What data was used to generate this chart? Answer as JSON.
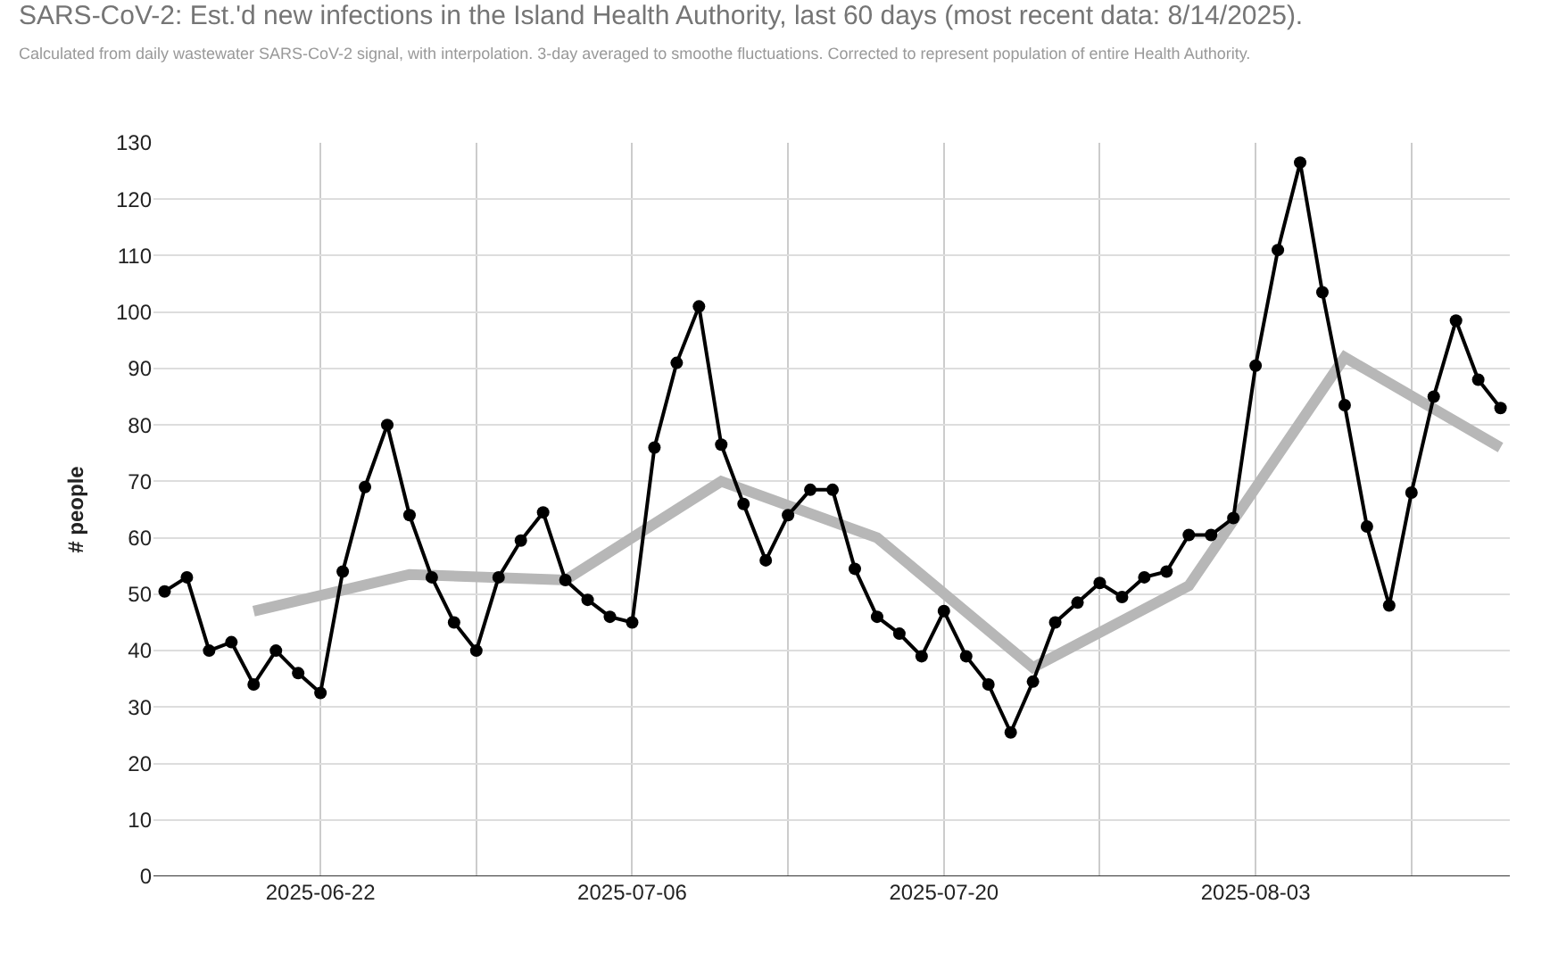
{
  "chart_data": {
    "type": "line",
    "title": "SARS-CoV-2: Est.'d new infections in the Island Health Authority, last 60 days (most recent data: 8/14/2025).",
    "subtitle": "Calculated from daily wastewater SARS-CoV-2 signal, with interpolation. 3-day averaged to smoothe fluctuations. Corrected to represent population of entire Health Authority.",
    "ylabel": "# people",
    "x": [
      "2025-06-15",
      "2025-06-16",
      "2025-06-17",
      "2025-06-18",
      "2025-06-19",
      "2025-06-20",
      "2025-06-21",
      "2025-06-22",
      "2025-06-23",
      "2025-06-24",
      "2025-06-25",
      "2025-06-26",
      "2025-06-27",
      "2025-06-28",
      "2025-06-29",
      "2025-06-30",
      "2025-07-01",
      "2025-07-02",
      "2025-07-03",
      "2025-07-04",
      "2025-07-05",
      "2025-07-06",
      "2025-07-07",
      "2025-07-08",
      "2025-07-09",
      "2025-07-10",
      "2025-07-11",
      "2025-07-12",
      "2025-07-13",
      "2025-07-14",
      "2025-07-15",
      "2025-07-16",
      "2025-07-17",
      "2025-07-18",
      "2025-07-19",
      "2025-07-20",
      "2025-07-21",
      "2025-07-22",
      "2025-07-23",
      "2025-07-24",
      "2025-07-25",
      "2025-07-26",
      "2025-07-27",
      "2025-07-28",
      "2025-07-29",
      "2025-07-30",
      "2025-07-31",
      "2025-08-01",
      "2025-08-02",
      "2025-08-03",
      "2025-08-04",
      "2025-08-05",
      "2025-08-06",
      "2025-08-07",
      "2025-08-08",
      "2025-08-09",
      "2025-08-10",
      "2025-08-11",
      "2025-08-12",
      "2025-08-13",
      "2025-08-14"
    ],
    "series": [
      {
        "color": "#000000",
        "marker": "circle",
        "values": [
          50.5,
          53,
          40,
          41.5,
          34,
          40,
          36,
          32.5,
          54,
          69,
          80,
          64,
          53,
          45,
          40,
          53,
          59.5,
          64.5,
          52.5,
          49,
          46,
          45,
          76,
          91,
          101,
          76.5,
          66,
          56,
          64,
          68.5,
          68.5,
          54.5,
          46,
          43,
          39,
          47,
          39,
          34,
          25.5,
          34.5,
          45,
          48.5,
          52,
          49.5,
          53,
          54,
          60.5,
          60.5,
          63.5,
          90.5,
          111,
          126.5,
          103.5,
          83.5,
          62,
          48,
          68,
          85,
          98.5,
          88,
          83
        ]
      },
      {
        "color": "#b7b7b7",
        "marker": "none",
        "x": [
          "2025-06-19",
          "2025-06-26",
          "2025-07-03",
          "2025-07-10",
          "2025-07-17",
          "2025-07-24",
          "2025-07-31",
          "2025-08-07",
          "2025-08-14"
        ],
        "values": [
          47,
          53.5,
          52.5,
          70,
          60,
          37,
          51.5,
          92,
          76
        ]
      }
    ],
    "xlim": [
      "2025-06-14T12:00",
      "2025-08-14T10:00"
    ],
    "xticks": [
      {
        "value": "2025-06-22",
        "label": "2025-06-22"
      },
      {
        "value": "2025-06-29",
        "label": null
      },
      {
        "value": "2025-07-06",
        "label": "2025-07-06"
      },
      {
        "value": "2025-07-13",
        "label": null
      },
      {
        "value": "2025-07-20",
        "label": "2025-07-20"
      },
      {
        "value": "2025-07-27",
        "label": null
      },
      {
        "value": "2025-08-03",
        "label": "2025-08-03"
      },
      {
        "value": "2025-08-10",
        "label": null
      }
    ],
    "ylim": [
      0,
      130
    ],
    "yticks": [
      0,
      10,
      20,
      30,
      40,
      50,
      60,
      70,
      80,
      90,
      100,
      110,
      120,
      130
    ],
    "grid": true,
    "line_style": "solid"
  }
}
